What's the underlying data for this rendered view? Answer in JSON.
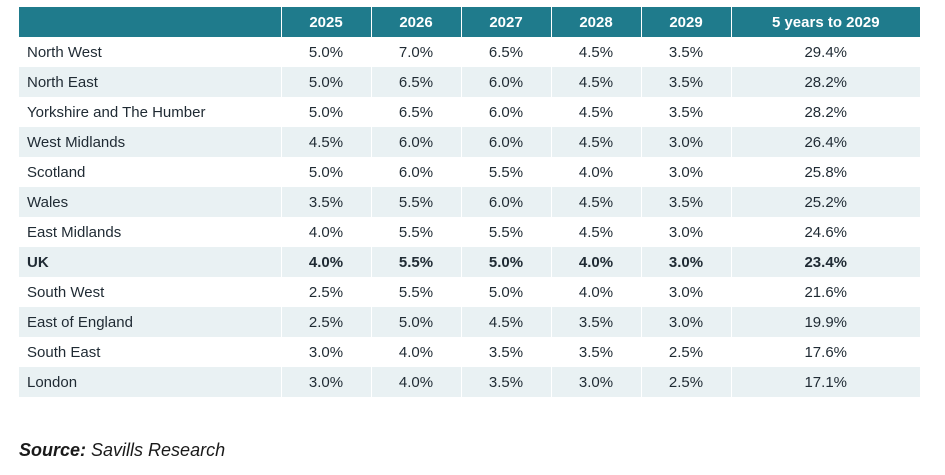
{
  "table": {
    "headers": [
      "",
      "2025",
      "2026",
      "2027",
      "2028",
      "2029",
      "5 years to 2029"
    ],
    "rows": [
      {
        "region": "North West",
        "values": [
          "5.0%",
          "7.0%",
          "6.5%",
          "4.5%",
          "3.5%",
          "29.4%"
        ],
        "bold": false
      },
      {
        "region": "North East",
        "values": [
          "5.0%",
          "6.5%",
          "6.0%",
          "4.5%",
          "3.5%",
          "28.2%"
        ],
        "bold": false
      },
      {
        "region": "Yorkshire and The Humber",
        "values": [
          "5.0%",
          "6.5%",
          "6.0%",
          "4.5%",
          "3.5%",
          "28.2%"
        ],
        "bold": false
      },
      {
        "region": "West Midlands",
        "values": [
          "4.5%",
          "6.0%",
          "6.0%",
          "4.5%",
          "3.0%",
          "26.4%"
        ],
        "bold": false
      },
      {
        "region": "Scotland",
        "values": [
          "5.0%",
          "6.0%",
          "5.5%",
          "4.0%",
          "3.0%",
          "25.8%"
        ],
        "bold": false
      },
      {
        "region": "Wales",
        "values": [
          "3.5%",
          "5.5%",
          "6.0%",
          "4.5%",
          "3.5%",
          "25.2%"
        ],
        "bold": false
      },
      {
        "region": "East Midlands",
        "values": [
          "4.0%",
          "5.5%",
          "5.5%",
          "4.5%",
          "3.0%",
          "24.6%"
        ],
        "bold": false
      },
      {
        "region": "UK",
        "values": [
          "4.0%",
          "5.5%",
          "5.0%",
          "4.0%",
          "3.0%",
          "23.4%"
        ],
        "bold": true
      },
      {
        "region": "South West",
        "values": [
          "2.5%",
          "5.5%",
          "5.0%",
          "4.0%",
          "3.0%",
          "21.6%"
        ],
        "bold": false
      },
      {
        "region": "East of England",
        "values": [
          "2.5%",
          "5.0%",
          "4.5%",
          "3.5%",
          "3.0%",
          "19.9%"
        ],
        "bold": false
      },
      {
        "region": "South East",
        "values": [
          "3.0%",
          "4.0%",
          "3.5%",
          "3.5%",
          "2.5%",
          "17.6%"
        ],
        "bold": false
      },
      {
        "region": "London",
        "values": [
          "3.0%",
          "4.0%",
          "3.5%",
          "3.0%",
          "2.5%",
          "17.1%"
        ],
        "bold": false
      }
    ]
  },
  "source": {
    "label": "Source:",
    "text": " Savills Research"
  },
  "colors": {
    "header_bg": "#1f7b8c",
    "stripe_bg": "#e9f1f3"
  }
}
